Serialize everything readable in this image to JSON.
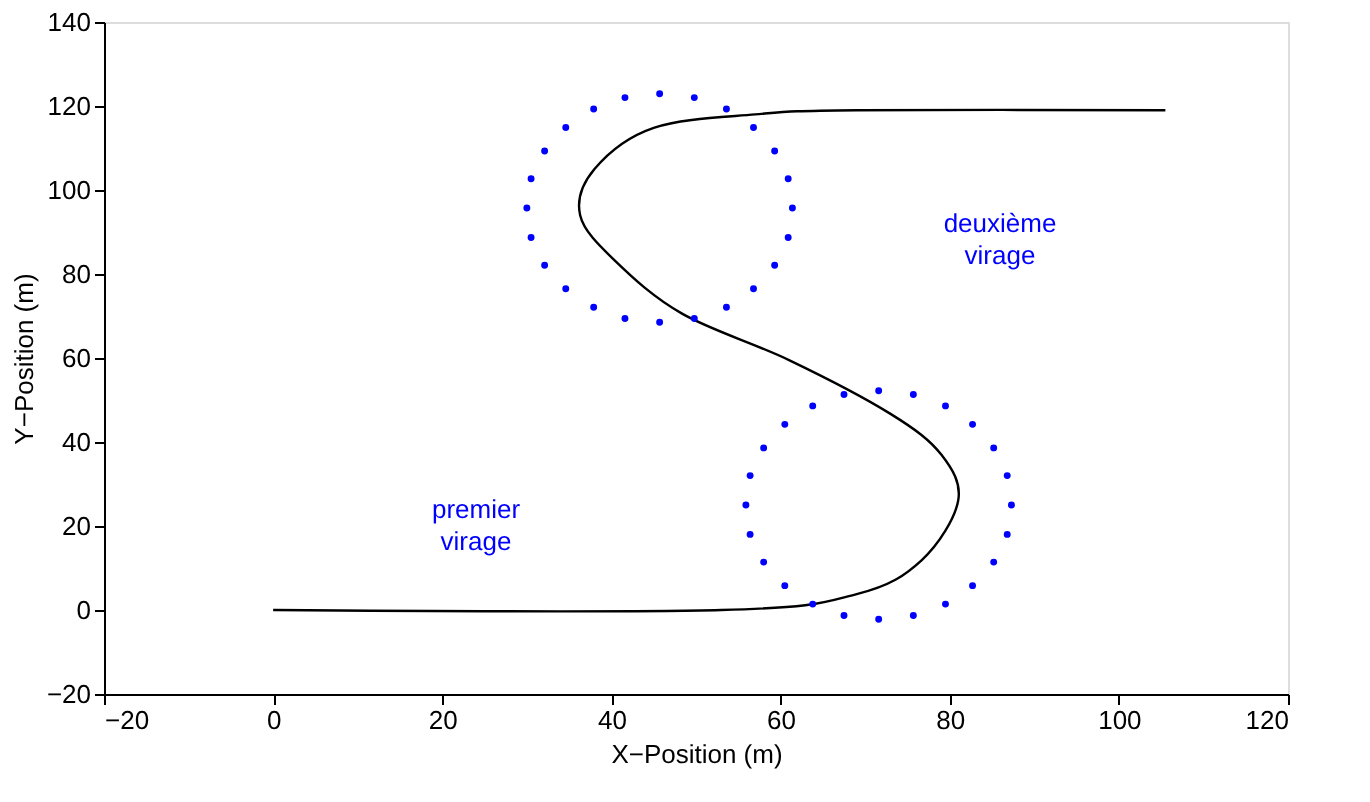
{
  "chart_data": {
    "type": "line",
    "xlabel": "X−Position (m)",
    "ylabel": "Y−Position (m)",
    "xlim": [
      -20,
      120
    ],
    "xticks": [
      {
        "value": -20,
        "label": "−20"
      },
      0,
      20,
      40,
      60,
      80,
      100,
      120
    ],
    "ylim": [
      -20,
      140
    ],
    "yticks": [
      {
        "value": -20,
        "label": "−20"
      },
      0,
      20,
      40,
      60,
      80,
      100,
      120,
      140
    ],
    "grid": false,
    "series": [
      {
        "color": "#000000",
        "line_style": "solid",
        "x": [
          0,
          53,
          69,
          76.7,
          81,
          79,
          73,
          61,
          48.4,
          40.5,
          36.3,
          38,
          45,
          57,
          69,
          105.5
        ],
        "values": [
          0,
          0,
          3.8,
          11.9,
          26,
          37,
          46.7,
          59.5,
          70.5,
          83,
          94,
          105,
          114.8,
          118,
          119,
          119
        ]
      },
      {
        "type": "scatter",
        "color": "#0000ff",
        "x": [
          87.3,
          86.8,
          85.2,
          82.7,
          79.5,
          75.7,
          71.6,
          67.5,
          63.8,
          60.5,
          58.0,
          56.4,
          55.9,
          56.4,
          58.0,
          60.5,
          63.8,
          67.5,
          71.6,
          75.7,
          79.5,
          82.7,
          85.2,
          86.8
        ],
        "values": [
          25,
          32.0,
          38.6,
          44.2,
          48.6,
          51.3,
          52.2,
          51.3,
          48.6,
          44.2,
          38.6,
          32.0,
          25,
          18.0,
          11.4,
          5.8,
          1.4,
          -1.3,
          -2.2,
          -1.3,
          1.4,
          5.8,
          11.4,
          18.0
        ]
      },
      {
        "type": "scatter",
        "color": "#0000ff",
        "x": [
          61.4,
          60.9,
          59.3,
          56.8,
          53.6,
          49.8,
          45.7,
          41.6,
          37.9,
          34.6,
          32.1,
          30.5,
          30.0,
          30.5,
          32.1,
          34.6,
          37.9,
          41.6,
          45.7,
          49.8,
          53.6,
          56.8,
          59.3,
          60.9
        ],
        "values": [
          95.7,
          102.7,
          109.3,
          114.9,
          119.3,
          122.0,
          122.9,
          122.0,
          119.3,
          114.9,
          109.3,
          102.7,
          95.7,
          88.7,
          82.1,
          76.5,
          72.1,
          69.4,
          68.5,
          69.4,
          72.1,
          76.5,
          82.1,
          88.7
        ]
      }
    ],
    "annotations": [
      "premier virage",
      "deuxième virage"
    ]
  }
}
